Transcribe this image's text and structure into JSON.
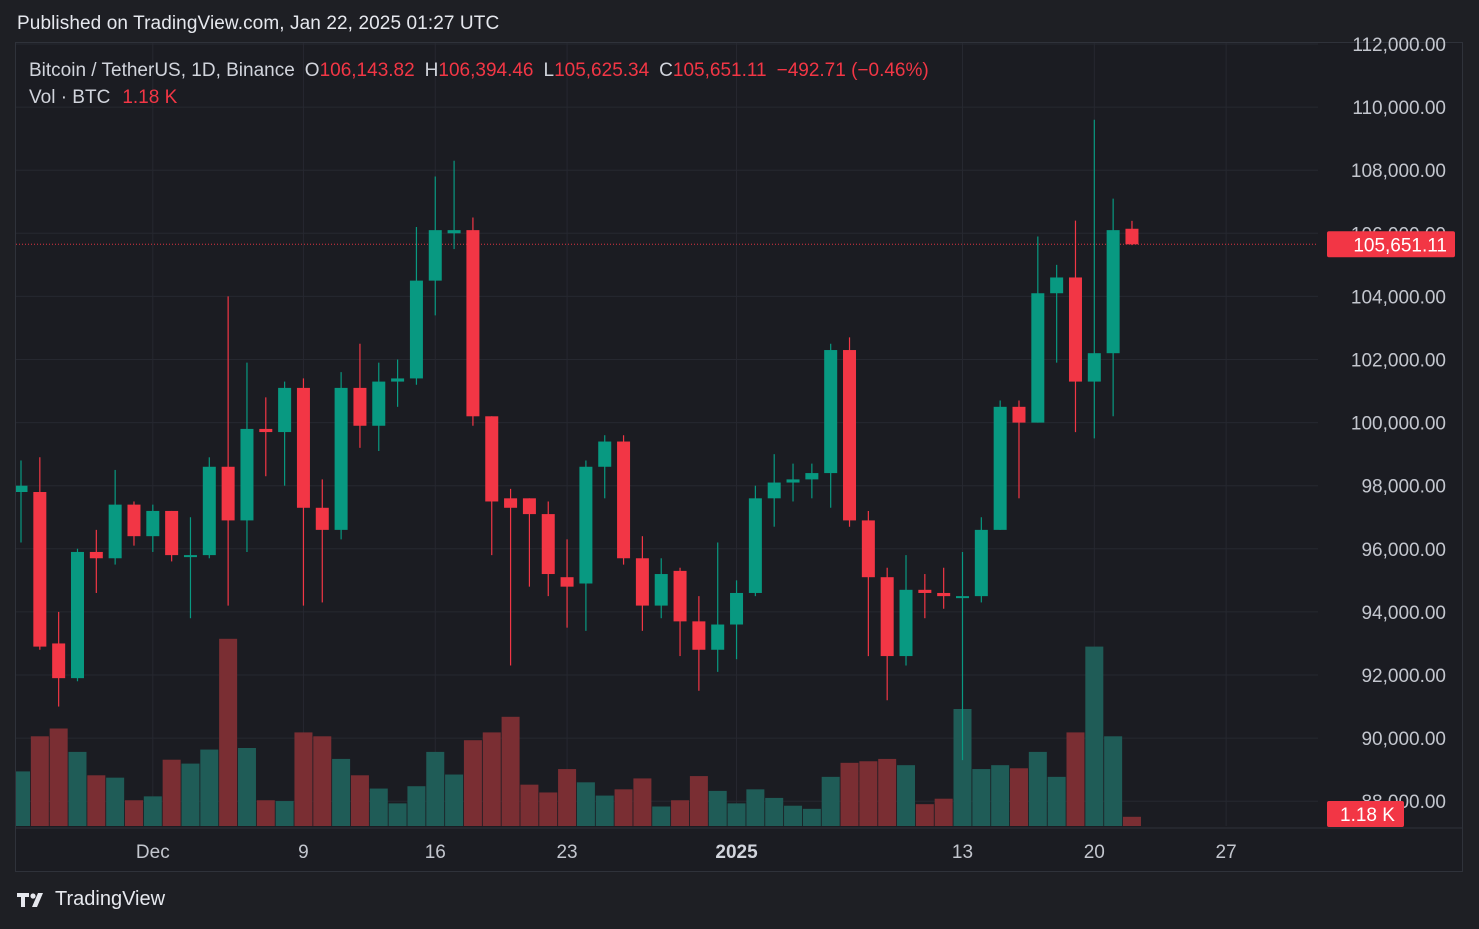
{
  "header": {
    "published": "Published on TradingView.com, Jan 22, 2025 01:27 UTC"
  },
  "legend": {
    "symbol": "Bitcoin / TetherUS, 1D, Binance",
    "o_label": "O",
    "o_value": "106,143.82",
    "h_label": "H",
    "h_value": "106,394.46",
    "l_label": "L",
    "l_value": "105,625.34",
    "c_label": "C",
    "c_value": "105,651.11",
    "change": "−492.71 (−0.46%)",
    "vol_label": "Vol · BTC",
    "vol_value": "1.18 K"
  },
  "footer": {
    "brand": "TradingView",
    "logo_icon": "tradingview-logo-icon"
  },
  "colors": {
    "up": "#089981",
    "down": "#f23645",
    "up_vol": "#1f5c57",
    "down_vol": "#7a2e33",
    "background": "#1b1c22"
  },
  "chart_data": {
    "type": "candlestick",
    "price_axis": {
      "ticks": [
        "88,000.00",
        "90,000.00",
        "92,000.00",
        "94,000.00",
        "96,000.00",
        "98,000.00",
        "100,000.00",
        "102,000.00",
        "104,000.00",
        "106,000.00",
        "108,000.00",
        "110,000.00",
        "112,000.00"
      ],
      "ylim": [
        86000,
        112000
      ]
    },
    "time_axis": {
      "ticks": [
        {
          "label": "Dec",
          "index": 7
        },
        {
          "label": "9",
          "index": 15
        },
        {
          "label": "16",
          "index": 22
        },
        {
          "label": "23",
          "index": 29
        },
        {
          "label": "2025",
          "index": 38
        },
        {
          "label": "13",
          "index": 50
        },
        {
          "label": "20",
          "index": 57
        },
        {
          "label": "27",
          "index": 64
        }
      ]
    },
    "last_price_label": "105,651.11",
    "last_price": 105651.11,
    "last_volume_label": "1.18 K",
    "volume_max_k": 25,
    "candles": [
      {
        "o": 97800,
        "h": 98800,
        "l": 96200,
        "c": 98000,
        "v": 7
      },
      {
        "o": 97800,
        "h": 98900,
        "l": 92800,
        "c": 92900,
        "v": 11.5
      },
      {
        "o": 93000,
        "h": 94000,
        "l": 91000,
        "c": 91900,
        "v": 12.5
      },
      {
        "o": 91900,
        "h": 96000,
        "l": 91800,
        "c": 95900,
        "v": 9.5
      },
      {
        "o": 95900,
        "h": 96600,
        "l": 94600,
        "c": 95700,
        "v": 6.5
      },
      {
        "o": 95700,
        "h": 98500,
        "l": 95500,
        "c": 97400,
        "v": 6.2
      },
      {
        "o": 97400,
        "h": 97500,
        "l": 96100,
        "c": 96400,
        "v": 3.3
      },
      {
        "o": 96400,
        "h": 97400,
        "l": 95900,
        "c": 97200,
        "v": 3.8
      },
      {
        "o": 97200,
        "h": 97200,
        "l": 95600,
        "c": 95800,
        "v": 8.5
      },
      {
        "o": 95800,
        "h": 97000,
        "l": 93800,
        "c": 95800,
        "v": 8
      },
      {
        "o": 95800,
        "h": 98900,
        "l": 95700,
        "c": 98600,
        "v": 9.8
      },
      {
        "o": 98600,
        "h": 104000,
        "l": 94200,
        "c": 96900,
        "v": 24
      },
      {
        "o": 96900,
        "h": 101900,
        "l": 95900,
        "c": 99800,
        "v": 10
      },
      {
        "o": 99800,
        "h": 100800,
        "l": 98300,
        "c": 99700,
        "v": 3.3
      },
      {
        "o": 99700,
        "h": 101300,
        "l": 98000,
        "c": 101100,
        "v": 3.2
      },
      {
        "o": 101100,
        "h": 101400,
        "l": 94200,
        "c": 97300,
        "v": 12
      },
      {
        "o": 97300,
        "h": 98200,
        "l": 94300,
        "c": 96600,
        "v": 11.5
      },
      {
        "o": 96600,
        "h": 101600,
        "l": 96300,
        "c": 101100,
        "v": 8.6
      },
      {
        "o": 101100,
        "h": 102500,
        "l": 99200,
        "c": 99900,
        "v": 6.5
      },
      {
        "o": 99900,
        "h": 101900,
        "l": 99100,
        "c": 101300,
        "v": 4.8
      },
      {
        "o": 101300,
        "h": 102000,
        "l": 100500,
        "c": 101400,
        "v": 2.9
      },
      {
        "o": 101400,
        "h": 106200,
        "l": 101200,
        "c": 104500,
        "v": 5.1
      },
      {
        "o": 104500,
        "h": 107800,
        "l": 103400,
        "c": 106100,
        "v": 9.5
      },
      {
        "o": 106000,
        "h": 108300,
        "l": 105500,
        "c": 106100,
        "v": 6.6
      },
      {
        "o": 106100,
        "h": 106500,
        "l": 99900,
        "c": 100200,
        "v": 11
      },
      {
        "o": 100200,
        "h": 100200,
        "l": 95800,
        "c": 97500,
        "v": 12
      },
      {
        "o": 97600,
        "h": 97900,
        "l": 92300,
        "c": 97300,
        "v": 14
      },
      {
        "o": 97600,
        "h": 97600,
        "l": 94800,
        "c": 97100,
        "v": 5.3
      },
      {
        "o": 97100,
        "h": 97500,
        "l": 94500,
        "c": 95200,
        "v": 4.3
      },
      {
        "o": 95100,
        "h": 96300,
        "l": 93500,
        "c": 94800,
        "v": 7.3
      },
      {
        "o": 94900,
        "h": 98800,
        "l": 93400,
        "c": 98600,
        "v": 5.6
      },
      {
        "o": 98600,
        "h": 99600,
        "l": 97600,
        "c": 99400,
        "v": 3.9
      },
      {
        "o": 99400,
        "h": 99600,
        "l": 95500,
        "c": 95700,
        "v": 4.7
      },
      {
        "o": 95700,
        "h": 96400,
        "l": 93400,
        "c": 94200,
        "v": 6.1
      },
      {
        "o": 94200,
        "h": 95700,
        "l": 93800,
        "c": 95200,
        "v": 2.5
      },
      {
        "o": 95300,
        "h": 95400,
        "l": 92600,
        "c": 93700,
        "v": 3.3
      },
      {
        "o": 93700,
        "h": 94500,
        "l": 91500,
        "c": 92800,
        "v": 6.4
      },
      {
        "o": 92800,
        "h": 96200,
        "l": 92100,
        "c": 93600,
        "v": 4.5
      },
      {
        "o": 93600,
        "h": 95000,
        "l": 92500,
        "c": 94600,
        "v": 2.9
      },
      {
        "o": 94600,
        "h": 98000,
        "l": 94500,
        "c": 97600,
        "v": 4.7
      },
      {
        "o": 97600,
        "h": 99000,
        "l": 96700,
        "c": 98100,
        "v": 3.6
      },
      {
        "o": 98100,
        "h": 98700,
        "l": 97500,
        "c": 98200,
        "v": 2.6
      },
      {
        "o": 98200,
        "h": 98700,
        "l": 97600,
        "c": 98400,
        "v": 2.2
      },
      {
        "o": 98400,
        "h": 102500,
        "l": 97300,
        "c": 102300,
        "v": 6.3
      },
      {
        "o": 102300,
        "h": 102700,
        "l": 96700,
        "c": 96900,
        "v": 8.1
      },
      {
        "o": 96900,
        "h": 97200,
        "l": 92600,
        "c": 95100,
        "v": 8.3
      },
      {
        "o": 95100,
        "h": 95400,
        "l": 91200,
        "c": 92600,
        "v": 8.6
      },
      {
        "o": 92600,
        "h": 95800,
        "l": 92300,
        "c": 94700,
        "v": 7.8
      },
      {
        "o": 94700,
        "h": 95200,
        "l": 93800,
        "c": 94600,
        "v": 2.8
      },
      {
        "o": 94600,
        "h": 95400,
        "l": 94100,
        "c": 94500,
        "v": 3.5
      },
      {
        "o": 94500,
        "h": 95900,
        "l": 89300,
        "c": 94500,
        "v": 15
      },
      {
        "o": 94500,
        "h": 97000,
        "l": 94300,
        "c": 96600,
        "v": 7.3
      },
      {
        "o": 96600,
        "h": 100700,
        "l": 96600,
        "c": 100500,
        "v": 7.8
      },
      {
        "o": 100500,
        "h": 100700,
        "l": 97600,
        "c": 100000,
        "v": 7.4
      },
      {
        "o": 100000,
        "h": 105900,
        "l": 100000,
        "c": 104100,
        "v": 9.5
      },
      {
        "o": 104100,
        "h": 105000,
        "l": 101900,
        "c": 104600,
        "v": 6.3
      },
      {
        "o": 104600,
        "h": 106400,
        "l": 99700,
        "c": 101300,
        "v": 12
      },
      {
        "o": 101300,
        "h": 109600,
        "l": 99500,
        "c": 102200,
        "v": 23
      },
      {
        "o": 102200,
        "h": 107100,
        "l": 100200,
        "c": 106100,
        "v": 11.5
      },
      {
        "o": 106143.82,
        "h": 106394.46,
        "l": 105625.34,
        "c": 105651.11,
        "v": 1.18
      }
    ]
  }
}
